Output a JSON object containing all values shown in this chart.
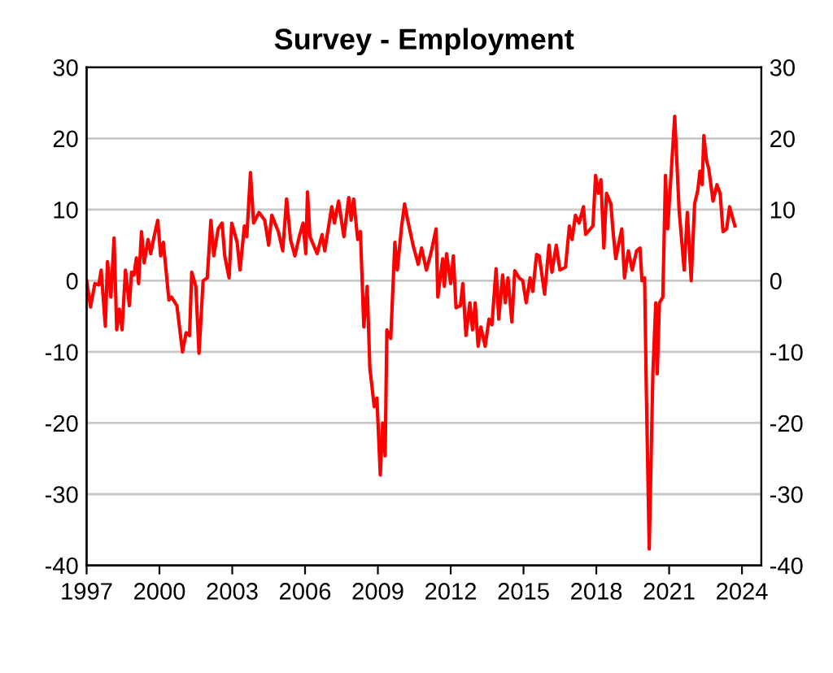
{
  "chart_data": {
    "type": "line",
    "title": "Survey - Employment",
    "x": [
      1997.0,
      1997.16,
      1997.34,
      1997.5,
      1997.6,
      1997.77,
      1997.86,
      1998.0,
      1998.13,
      1998.24,
      1998.35,
      1998.46,
      1998.6,
      1998.76,
      1998.85,
      1998.95,
      1999.05,
      1999.14,
      1999.26,
      1999.37,
      1999.53,
      1999.64,
      1999.78,
      1999.93,
      2000.05,
      2000.16,
      2000.39,
      2000.5,
      2000.72,
      2000.95,
      2001.1,
      2001.24,
      2001.33,
      2001.5,
      2001.63,
      2001.8,
      2001.97,
      2002.12,
      2002.24,
      2002.42,
      2002.58,
      2002.69,
      2002.87,
      2002.98,
      2003.2,
      2003.32,
      2003.5,
      2003.6,
      2003.75,
      2003.88,
      2004.1,
      2004.34,
      2004.5,
      2004.63,
      2004.9,
      2005.08,
      2005.24,
      2005.4,
      2005.58,
      2005.76,
      2005.92,
      2006.03,
      2006.1,
      2006.2,
      2006.5,
      2006.7,
      2006.81,
      2007.1,
      2007.21,
      2007.38,
      2007.6,
      2007.8,
      2007.9,
      2008.0,
      2008.17,
      2008.28,
      2008.42,
      2008.56,
      2008.67,
      2008.85,
      2008.96,
      2009.1,
      2009.2,
      2009.3,
      2009.37,
      2009.53,
      2009.7,
      2009.8,
      2009.98,
      2010.1,
      2010.23,
      2010.45,
      2010.66,
      2010.8,
      2011.0,
      2011.18,
      2011.4,
      2011.47,
      2011.67,
      2011.74,
      2011.83,
      2012.0,
      2012.11,
      2012.22,
      2012.4,
      2012.5,
      2012.63,
      2012.79,
      2012.9,
      2013.01,
      2013.13,
      2013.24,
      2013.42,
      2013.58,
      2013.7,
      2013.87,
      2013.98,
      2014.14,
      2014.25,
      2014.36,
      2014.52,
      2014.64,
      2014.82,
      2014.97,
      2015.11,
      2015.27,
      2015.38,
      2015.54,
      2015.65,
      2015.87,
      2016.05,
      2016.17,
      2016.35,
      2016.5,
      2016.73,
      2016.89,
      2017.0,
      2017.14,
      2017.29,
      2017.47,
      2017.56,
      2017.86,
      2017.97,
      2018.08,
      2018.19,
      2018.31,
      2018.42,
      2018.6,
      2018.69,
      2018.8,
      2019.05,
      2019.16,
      2019.32,
      2019.48,
      2019.66,
      2019.8,
      2019.88,
      2019.99,
      2020.06,
      2020.18,
      2020.33,
      2020.45,
      2020.51,
      2020.6,
      2020.74,
      2020.85,
      2020.94,
      2021.23,
      2021.41,
      2021.62,
      2021.75,
      2021.91,
      2022.05,
      2022.18,
      2022.27,
      2022.36,
      2022.43,
      2022.54,
      2022.63,
      2022.81,
      2022.97,
      2023.1,
      2023.22,
      2023.37,
      2023.49,
      2023.71
    ],
    "series": [
      {
        "color": "#ff0000",
        "values": [
          0,
          -3.7,
          -0.4,
          -0.6,
          1.5,
          -6.4,
          2.7,
          -2.3,
          6,
          -6.9,
          -4,
          -6.9,
          1.5,
          -3.5,
          1.2,
          0.8,
          3.2,
          -0.4,
          6.9,
          2.5,
          5.8,
          3.8,
          6.2,
          8.5,
          3.5,
          5.4,
          -2.7,
          -2.3,
          -3.5,
          -10,
          -7.3,
          -7.7,
          1.2,
          -0.8,
          -10.2,
          0,
          0.4,
          8.5,
          3.5,
          7.3,
          8.1,
          3.5,
          0.4,
          8.1,
          5.4,
          1.5,
          7.7,
          6.2,
          15.2,
          8.1,
          9.6,
          8.5,
          5,
          9.2,
          6.9,
          4.2,
          11.5,
          5.8,
          3.5,
          6.2,
          8.1,
          3.8,
          12.5,
          6.2,
          3.8,
          6.5,
          4.2,
          10.4,
          8.1,
          11.2,
          6.2,
          11.7,
          8.5,
          11.5,
          5.8,
          6.9,
          -6.5,
          -0.8,
          -12.3,
          -17.7,
          -16.5,
          -27.3,
          -20,
          -24.6,
          -6.9,
          -8.1,
          5.4,
          1.5,
          7.7,
          10.8,
          8.5,
          5,
          2.3,
          4.6,
          1.5,
          3.8,
          7.3,
          -2.3,
          3.1,
          -0.8,
          3.8,
          -0.4,
          3.5,
          -3.8,
          -3.5,
          -0.4,
          -7.7,
          -3.1,
          -6.9,
          -3.1,
          -9.2,
          -6.5,
          -9.2,
          -5.4,
          -6.2,
          1.7,
          -5.4,
          0.8,
          -3.1,
          0.4,
          -5.8,
          1.4,
          0.4,
          0,
          -3.1,
          0.4,
          -1.5,
          3.7,
          3.5,
          -1.9,
          5,
          1.2,
          5,
          1.5,
          1.9,
          7.7,
          5.8,
          9.2,
          8.1,
          10.4,
          6.5,
          7.7,
          14.8,
          12.3,
          14.2,
          4.6,
          12.3,
          10.8,
          6.9,
          3.1,
          7.3,
          0.4,
          4.2,
          1.5,
          4.2,
          4.6,
          0,
          0.4,
          -15.4,
          -37.7,
          -13.1,
          -3.1,
          -13.1,
          -3.1,
          -2.3,
          14.8,
          7.3,
          23.1,
          10,
          1.5,
          9.6,
          0,
          10.8,
          12.7,
          15.4,
          13.5,
          20.4,
          16.9,
          15.8,
          11.2,
          13.5,
          12.3,
          6.9,
          7.3,
          10.4,
          7.7
        ]
      }
    ],
    "xlim": [
      1997,
      2024.8
    ],
    "xticks": [
      1997,
      2000,
      2003,
      2006,
      2009,
      2012,
      2015,
      2018,
      2021,
      2024
    ],
    "ylim": [
      -40,
      30
    ],
    "yticks": [
      -40,
      -30,
      -20,
      -10,
      0,
      10,
      20,
      30
    ],
    "y2lim": [
      -40,
      30
    ],
    "y2ticks": [
      -40,
      -30,
      -20,
      -10,
      0,
      10,
      20,
      30
    ],
    "grid": "y",
    "marker": "none",
    "line_style": "solid"
  }
}
